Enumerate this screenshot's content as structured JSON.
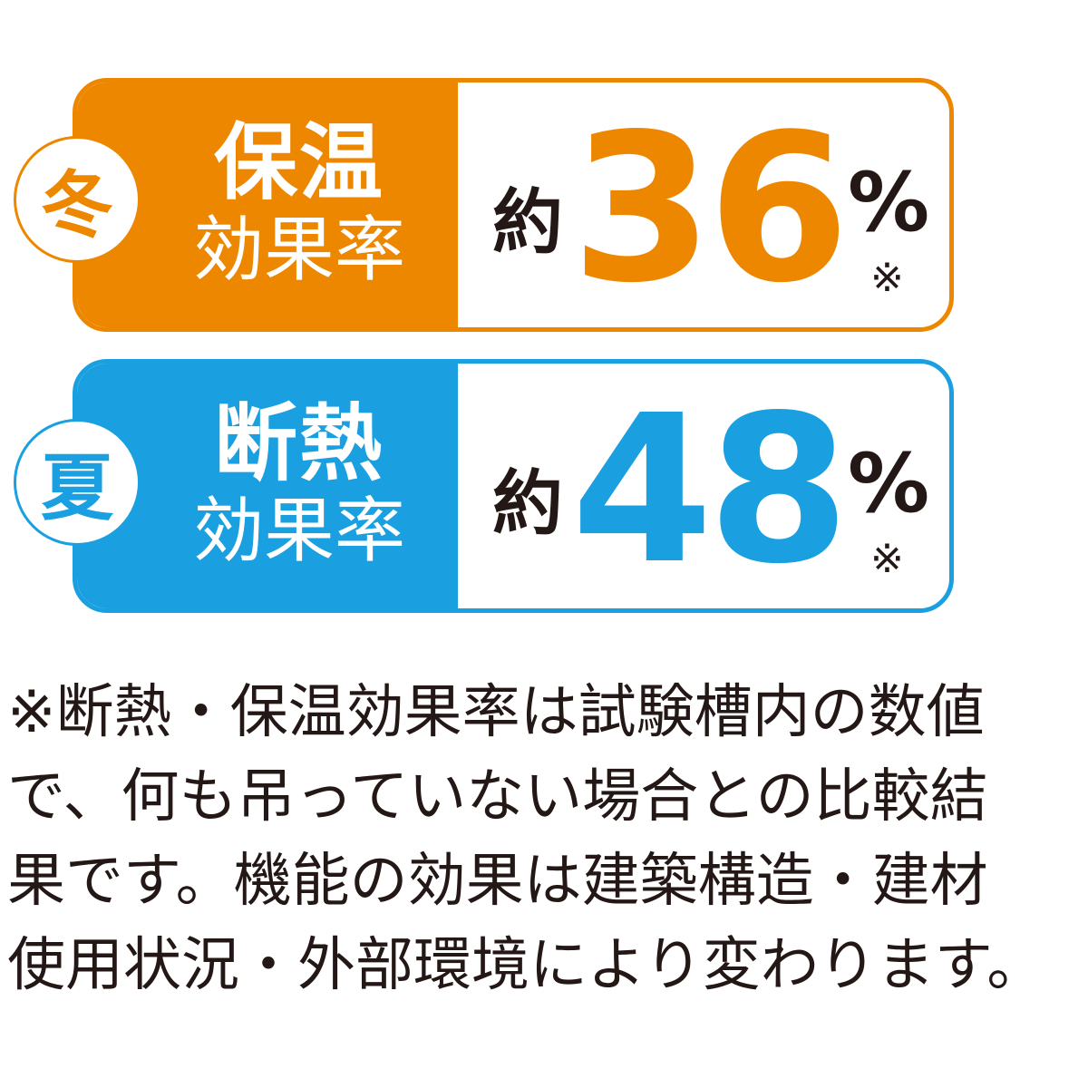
{
  "colors": {
    "winter": "#EE8700",
    "summer": "#1AA0E0",
    "text": "#231815"
  },
  "cards": [
    {
      "season": "冬",
      "title": "保温",
      "subtitle": "効果率",
      "prefix": "約",
      "value": "36",
      "unit": "%",
      "note": "※"
    },
    {
      "season": "夏",
      "title": "断熱",
      "subtitle": "効果率",
      "prefix": "約",
      "value": "48",
      "unit": "%",
      "note": "※"
    }
  ],
  "footnote": {
    "lines": [
      "※断熱・保温効果率は試験槽内の数値",
      "で、何も吊っていない場合との比較結",
      "果です。機能の効果は建築構造・建材",
      "使用状況・外部環境により変わります。"
    ]
  }
}
